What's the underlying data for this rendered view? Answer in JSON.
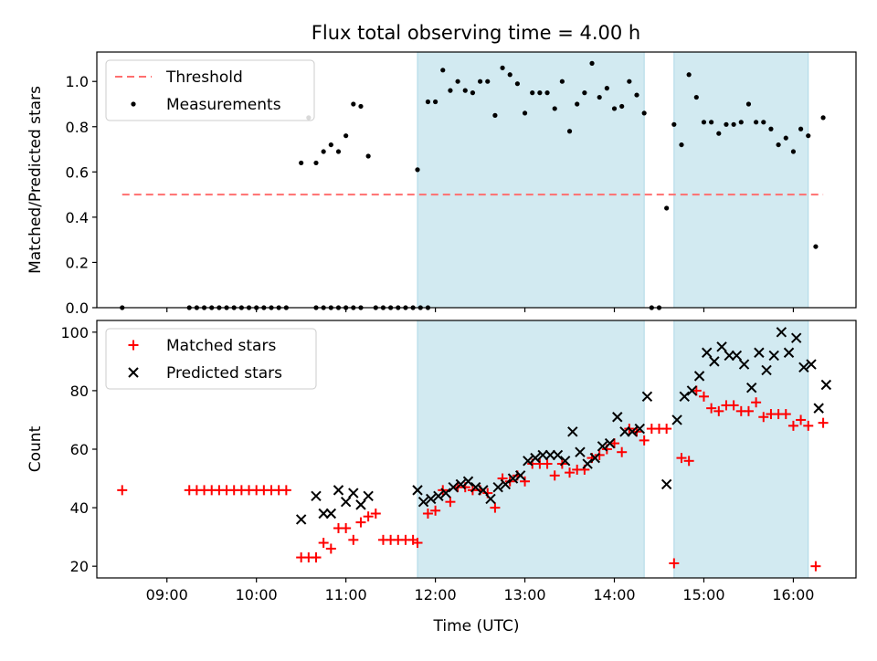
{
  "figure_title": "Flux total observing time = 4.00 h",
  "colors": {
    "threshold": "#ff6f6f",
    "measurements": "#000000",
    "matched": "#ff0000",
    "predicted": "#000000",
    "observing_band": "#add8e6"
  },
  "chart_data": [
    {
      "type": "scatter",
      "panel": "top",
      "title": "Flux total observing time = 4.00 h",
      "xlabel": "",
      "ylabel": "Matched/Predicted stars",
      "xlim": [
        "08:13",
        "16:42"
      ],
      "ylim": [
        0,
        1.13
      ],
      "yticks": [
        0.0,
        0.2,
        0.4,
        0.6,
        0.8,
        1.0
      ],
      "ytick_labels": [
        "0.0",
        "0.2",
        "0.4",
        "0.6",
        "0.8",
        "1.0"
      ],
      "legend_position": "upper-left",
      "legend": [
        {
          "label": "Threshold",
          "style": "dashed-line",
          "color": "#ff6f6f"
        },
        {
          "label": "Measurements",
          "style": "dot",
          "color": "#000000"
        }
      ],
      "shaded_intervals": [
        [
          "11:48",
          "14:20"
        ],
        [
          "14:40",
          "16:10"
        ]
      ],
      "threshold": {
        "value": 0.5,
        "x_range": [
          "08:30",
          "16:20"
        ]
      },
      "series": [
        {
          "name": "Measurements",
          "marker": "dot",
          "x": [
            "08:30",
            "09:15",
            "09:20",
            "09:25",
            "09:30",
            "09:35",
            "09:40",
            "09:45",
            "09:50",
            "09:55",
            "10:00",
            "10:05",
            "10:10",
            "10:15",
            "10:20",
            "10:40",
            "10:45",
            "10:50",
            "10:55",
            "11:00",
            "11:05",
            "11:10",
            "11:20",
            "11:25",
            "11:30",
            "11:35",
            "11:40",
            "11:45",
            "11:50",
            "11:55",
            "10:30",
            "10:35",
            "10:40",
            "10:45",
            "10:50",
            "10:55",
            "11:00",
            "11:05",
            "11:10",
            "11:15",
            "11:48",
            "11:55",
            "12:00",
            "12:05",
            "12:10",
            "12:15",
            "12:20",
            "12:25",
            "12:30",
            "12:35",
            "12:40",
            "12:45",
            "12:50",
            "12:55",
            "13:00",
            "13:05",
            "13:10",
            "13:15",
            "13:20",
            "13:25",
            "13:30",
            "13:35",
            "13:40",
            "13:45",
            "13:50",
            "13:55",
            "14:00",
            "14:05",
            "14:10",
            "14:15",
            "14:20",
            "14:25",
            "14:30",
            "14:35",
            "14:40",
            "14:45",
            "14:50",
            "14:55",
            "15:00",
            "15:05",
            "15:10",
            "15:15",
            "15:20",
            "15:25",
            "15:30",
            "15:35",
            "15:40",
            "15:45",
            "15:50",
            "15:55",
            "16:00",
            "16:05",
            "16:10",
            "16:15",
            "16:20"
          ],
          "y": [
            0.0,
            0.0,
            0.0,
            0.0,
            0.0,
            0.0,
            0.0,
            0.0,
            0.0,
            0.0,
            0.0,
            0.0,
            0.0,
            0.0,
            0.0,
            0.0,
            0.0,
            0.0,
            0.0,
            0.0,
            0.0,
            0.0,
            0.0,
            0.0,
            0.0,
            0.0,
            0.0,
            0.0,
            0.0,
            0.0,
            0.64,
            0.84,
            0.64,
            0.69,
            0.72,
            0.69,
            0.76,
            0.9,
            0.89,
            0.67,
            0.61,
            0.91,
            0.91,
            1.05,
            0.96,
            1.0,
            0.96,
            0.95,
            1.0,
            1.0,
            0.85,
            1.06,
            1.03,
            0.99,
            0.86,
            0.95,
            0.95,
            0.95,
            0.88,
            1.0,
            0.78,
            0.9,
            0.95,
            1.08,
            0.93,
            0.97,
            0.88,
            0.89,
            1.0,
            0.94,
            0.86,
            0.0,
            0.0,
            0.44,
            0.81,
            0.72,
            1.03,
            0.93,
            0.82,
            0.82,
            0.77,
            0.81,
            0.81,
            0.82,
            0.9,
            0.82,
            0.82,
            0.79,
            0.72,
            0.75,
            0.69,
            0.79,
            0.76,
            0.27,
            0.84
          ]
        }
      ]
    },
    {
      "type": "scatter",
      "panel": "bottom",
      "title": "",
      "xlabel": "Time (UTC)",
      "ylabel": "Count",
      "xlim": [
        "08:13",
        "16:42"
      ],
      "ylim": [
        16,
        104
      ],
      "xticks": [
        "09:00",
        "10:00",
        "11:00",
        "12:00",
        "13:00",
        "14:00",
        "15:00",
        "16:00"
      ],
      "yticks": [
        20,
        40,
        60,
        80,
        100
      ],
      "ytick_labels": [
        "20",
        "40",
        "60",
        "80",
        "100"
      ],
      "legend_position": "upper-left",
      "legend": [
        {
          "label": "Matched stars",
          "style": "plus",
          "color": "#ff0000"
        },
        {
          "label": "Predicted stars",
          "style": "x",
          "color": "#000000"
        }
      ],
      "shaded_intervals": [
        [
          "11:48",
          "14:20"
        ],
        [
          "14:40",
          "16:10"
        ]
      ],
      "series": [
        {
          "name": "Matched stars",
          "marker": "plus",
          "x": [
            "08:30",
            "09:15",
            "09:20",
            "09:25",
            "09:30",
            "09:35",
            "09:40",
            "09:45",
            "09:50",
            "09:55",
            "10:00",
            "10:05",
            "10:10",
            "10:15",
            "10:20",
            "10:30",
            "10:35",
            "10:40",
            "10:45",
            "10:50",
            "10:55",
            "11:00",
            "11:05",
            "11:10",
            "11:15",
            "11:20",
            "11:25",
            "11:30",
            "11:35",
            "11:40",
            "11:45",
            "11:48",
            "11:55",
            "12:00",
            "12:05",
            "12:10",
            "12:15",
            "12:20",
            "12:25",
            "12:30",
            "12:35",
            "12:40",
            "12:45",
            "12:50",
            "12:55",
            "13:00",
            "13:05",
            "13:10",
            "13:15",
            "13:20",
            "13:25",
            "13:30",
            "13:35",
            "13:40",
            "13:45",
            "13:50",
            "13:55",
            "14:00",
            "14:05",
            "14:10",
            "14:15",
            "14:20",
            "14:25",
            "14:30",
            "14:35",
            "14:40",
            "14:45",
            "14:50",
            "14:55",
            "15:00",
            "15:05",
            "15:10",
            "15:15",
            "15:20",
            "15:25",
            "15:30",
            "15:35",
            "15:40",
            "15:45",
            "15:50",
            "15:55",
            "16:00",
            "16:05",
            "16:10",
            "16:15",
            "16:20",
            "10:40"
          ],
          "y": [
            46,
            46,
            46,
            46,
            46,
            46,
            46,
            46,
            46,
            46,
            46,
            46,
            46,
            46,
            46,
            23,
            23,
            23,
            28,
            26,
            33,
            33,
            29,
            35,
            37,
            38,
            29,
            29,
            29,
            29,
            29,
            28,
            38,
            39,
            46,
            42,
            47,
            47,
            46,
            46,
            45,
            40,
            50,
            49,
            51,
            49,
            55,
            55,
            55,
            51,
            55,
            52,
            53,
            53,
            57,
            58,
            60,
            62,
            59,
            67,
            66,
            63,
            67,
            67,
            67,
            21,
            57,
            56,
            80,
            78,
            74,
            73,
            75,
            75,
            73,
            73,
            76,
            71,
            72,
            72,
            72,
            68,
            70,
            68,
            20,
            69,
            23
          ]
        },
        {
          "name": "Predicted stars",
          "marker": "x",
          "x": [
            "10:30",
            "10:40",
            "10:45",
            "10:50",
            "10:55",
            "11:00",
            "11:05",
            "11:10",
            "11:15",
            "11:48",
            "11:52",
            "11:57",
            "12:02",
            "12:07",
            "12:12",
            "12:17",
            "12:22",
            "12:27",
            "12:32",
            "12:37",
            "12:42",
            "12:47",
            "12:52",
            "12:57",
            "13:02",
            "13:07",
            "13:12",
            "13:17",
            "13:22",
            "13:27",
            "13:32",
            "13:37",
            "13:42",
            "13:47",
            "13:52",
            "13:57",
            "14:02",
            "14:07",
            "14:12",
            "14:17",
            "14:22",
            "14:35",
            "14:42",
            "14:47",
            "14:52",
            "14:57",
            "15:02",
            "15:07",
            "15:12",
            "15:17",
            "15:22",
            "15:27",
            "15:32",
            "15:37",
            "15:42",
            "15:47",
            "15:52",
            "15:57",
            "16:02",
            "16:07",
            "16:12",
            "16:17",
            "16:22"
          ],
          "y": [
            36,
            44,
            38,
            38,
            46,
            42,
            45,
            41,
            44,
            46,
            42,
            43,
            44,
            45,
            47,
            48,
            49,
            47,
            46,
            43,
            47,
            48,
            50,
            51,
            56,
            57,
            58,
            58,
            58,
            56,
            66,
            59,
            55,
            57,
            61,
            62,
            71,
            66,
            66,
            67,
            78,
            48,
            70,
            78,
            80,
            85,
            93,
            90,
            95,
            92,
            92,
            89,
            81,
            93,
            87,
            92,
            100,
            93,
            98,
            88,
            89,
            74,
            82
          ]
        }
      ]
    }
  ]
}
